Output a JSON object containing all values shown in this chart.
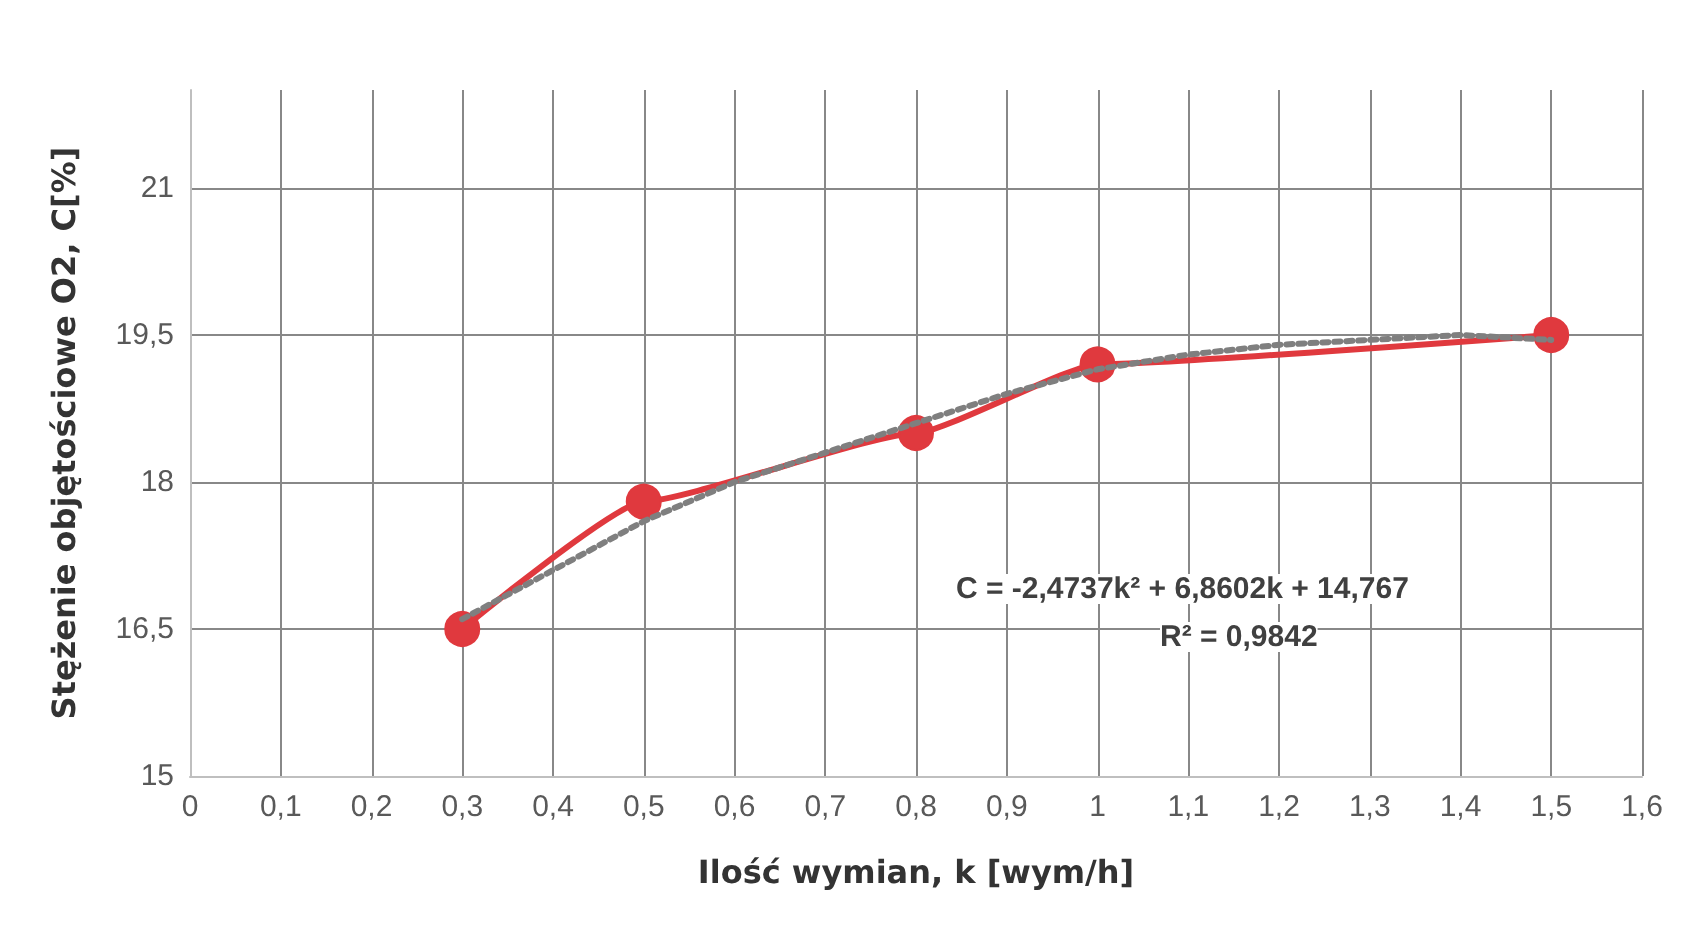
{
  "chart_data": {
    "type": "line",
    "xlabel": "Ilość wymian, k [wym/h]",
    "ylabel": "Stężenie objętościowe O2, C[%]",
    "annotations": [
      "C = -2,4737k² + 6,8602k + 14,767",
      "R² = 0,9842"
    ],
    "xlim": [
      0,
      1.6
    ],
    "xticks": [
      0,
      {
        "value": 0.1,
        "label": "0,1"
      },
      {
        "value": 0.2,
        "label": "0,2"
      },
      {
        "value": 0.3,
        "label": "0,3"
      },
      {
        "value": 0.4,
        "label": "0,4"
      },
      {
        "value": 0.5,
        "label": "0,5"
      },
      {
        "value": 0.6,
        "label": "0,6"
      },
      {
        "value": 0.7,
        "label": "0,7"
      },
      {
        "value": 0.8,
        "label": "0,8"
      },
      {
        "value": 0.9,
        "label": "0,9"
      },
      1,
      {
        "value": 1.1,
        "label": "1,1"
      },
      {
        "value": 1.2,
        "label": "1,2"
      },
      {
        "value": 1.3,
        "label": "1,3"
      },
      {
        "value": 1.4,
        "label": "1,4"
      },
      {
        "value": 1.5,
        "label": "1,5"
      },
      {
        "value": 1.6,
        "label": "1,6"
      }
    ],
    "ylim": [
      15,
      22
    ],
    "yticks": [
      15,
      {
        "value": 16.5,
        "label": "16,5"
      },
      18,
      {
        "value": 19.5,
        "label": "19,5"
      },
      21
    ],
    "grid": true,
    "series": [
      {
        "x": [
          0.3,
          0.5,
          0.8,
          1,
          1.5
        ],
        "values": [
          16.5,
          17.8,
          18.5,
          19.2,
          19.5
        ],
        "color": "#e0393e",
        "marker": "circle",
        "line_style": "solid"
      },
      {
        "x": [
          0.3,
          0.4,
          0.5,
          0.6,
          0.7,
          0.8,
          0.9,
          1.0,
          1.1,
          1.2,
          1.3,
          1.4,
          1.5
        ],
        "values": [
          16.6,
          17.1,
          17.6,
          18.0,
          18.3,
          18.6,
          18.9,
          19.15,
          19.3,
          19.4,
          19.45,
          19.5,
          19.45
        ],
        "color": "#7f7f7f",
        "marker": "none",
        "line_style": "dotted"
      }
    ]
  }
}
